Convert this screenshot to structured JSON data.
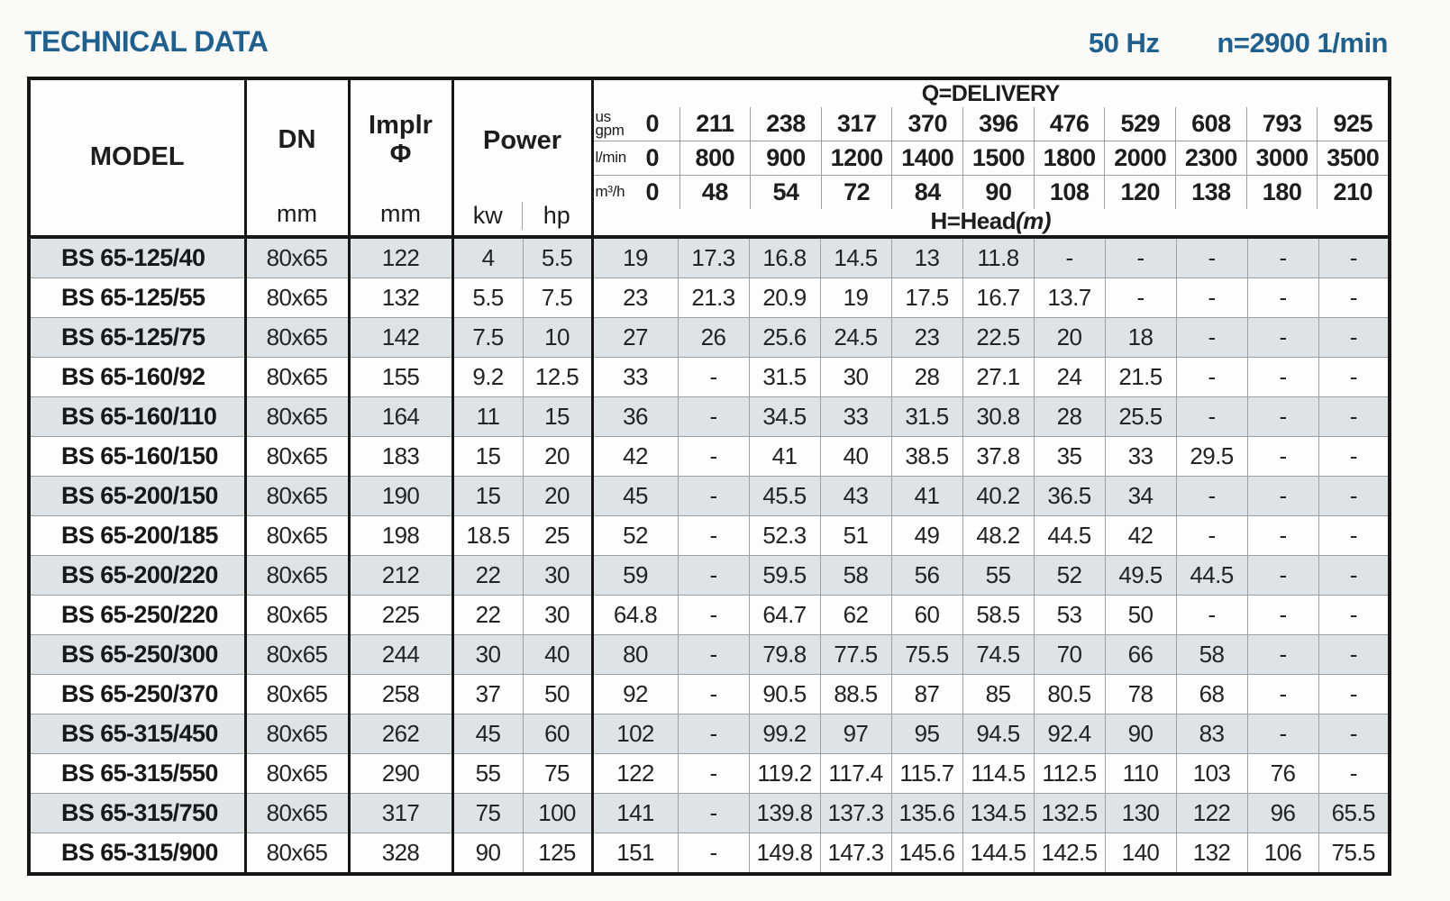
{
  "page": {
    "title": "TECHNICAL DATA",
    "frequency": "50 Hz",
    "speed": "n=2900 1/min"
  },
  "colors": {
    "accent_blue": "#1e608f",
    "row_shade": "#dee3e6",
    "grid_thin": "#9aa0a6",
    "grid_thick": "#161616"
  },
  "table": {
    "headers": {
      "model": "MODEL",
      "dn": "DN",
      "dn_unit": "mm",
      "implr_line1": "Implr",
      "implr_line2": "Φ",
      "implr_unit": "mm",
      "power": "Power",
      "power_kw": "kw",
      "power_hp": "hp",
      "delivery_title": "Q=DELIVERY",
      "head_label": "H=Head",
      "head_unit": "(m)",
      "unit_rows": [
        {
          "unit_lines": [
            "us",
            "gpm"
          ],
          "values": [
            "0",
            "211",
            "238",
            "317",
            "370",
            "396",
            "476",
            "529",
            "608",
            "793",
            "925"
          ]
        },
        {
          "unit_lines": [
            "l/min"
          ],
          "values": [
            "0",
            "800",
            "900",
            "1200",
            "1400",
            "1500",
            "1800",
            "2000",
            "2300",
            "3000",
            "3500"
          ]
        },
        {
          "unit_lines": [
            "m³/h"
          ],
          "values": [
            "0",
            "48",
            "54",
            "72",
            "84",
            "90",
            "108",
            "120",
            "138",
            "180",
            "210"
          ]
        }
      ]
    },
    "rows": [
      {
        "model": "BS 65-125/40",
        "dn": "80x65",
        "implr": "122",
        "kw": "4",
        "hp": "5.5",
        "head": [
          "19",
          "17.3",
          "16.8",
          "14.5",
          "13",
          "11.8",
          "-",
          "-",
          "-",
          "-",
          "-"
        ]
      },
      {
        "model": "BS 65-125/55",
        "dn": "80x65",
        "implr": "132",
        "kw": "5.5",
        "hp": "7.5",
        "head": [
          "23",
          "21.3",
          "20.9",
          "19",
          "17.5",
          "16.7",
          "13.7",
          "-",
          "-",
          "-",
          "-"
        ]
      },
      {
        "model": "BS 65-125/75",
        "dn": "80x65",
        "implr": "142",
        "kw": "7.5",
        "hp": "10",
        "head": [
          "27",
          "26",
          "25.6",
          "24.5",
          "23",
          "22.5",
          "20",
          "18",
          "-",
          "-",
          "-"
        ]
      },
      {
        "model": "BS 65-160/92",
        "dn": "80x65",
        "implr": "155",
        "kw": "9.2",
        "hp": "12.5",
        "head": [
          "33",
          "-",
          "31.5",
          "30",
          "28",
          "27.1",
          "24",
          "21.5",
          "-",
          "-",
          "-"
        ]
      },
      {
        "model": "BS 65-160/110",
        "dn": "80x65",
        "implr": "164",
        "kw": "11",
        "hp": "15",
        "head": [
          "36",
          "-",
          "34.5",
          "33",
          "31.5",
          "30.8",
          "28",
          "25.5",
          "-",
          "-",
          "-"
        ]
      },
      {
        "model": "BS 65-160/150",
        "dn": "80x65",
        "implr": "183",
        "kw": "15",
        "hp": "20",
        "head": [
          "42",
          "-",
          "41",
          "40",
          "38.5",
          "37.8",
          "35",
          "33",
          "29.5",
          "-",
          "-"
        ]
      },
      {
        "model": "BS 65-200/150",
        "dn": "80x65",
        "implr": "190",
        "kw": "15",
        "hp": "20",
        "head": [
          "45",
          "-",
          "45.5",
          "43",
          "41",
          "40.2",
          "36.5",
          "34",
          "-",
          "-",
          "-"
        ]
      },
      {
        "model": "BS 65-200/185",
        "dn": "80x65",
        "implr": "198",
        "kw": "18.5",
        "hp": "25",
        "head": [
          "52",
          "-",
          "52.3",
          "51",
          "49",
          "48.2",
          "44.5",
          "42",
          "-",
          "-",
          "-"
        ]
      },
      {
        "model": "BS 65-200/220",
        "dn": "80x65",
        "implr": "212",
        "kw": "22",
        "hp": "30",
        "head": [
          "59",
          "-",
          "59.5",
          "58",
          "56",
          "55",
          "52",
          "49.5",
          "44.5",
          "-",
          "-"
        ]
      },
      {
        "model": "BS 65-250/220",
        "dn": "80x65",
        "implr": "225",
        "kw": "22",
        "hp": "30",
        "head": [
          "64.8",
          "-",
          "64.7",
          "62",
          "60",
          "58.5",
          "53",
          "50",
          "-",
          "-",
          "-"
        ]
      },
      {
        "model": "BS 65-250/300",
        "dn": "80x65",
        "implr": "244",
        "kw": "30",
        "hp": "40",
        "head": [
          "80",
          "-",
          "79.8",
          "77.5",
          "75.5",
          "74.5",
          "70",
          "66",
          "58",
          "-",
          "-"
        ]
      },
      {
        "model": "BS 65-250/370",
        "dn": "80x65",
        "implr": "258",
        "kw": "37",
        "hp": "50",
        "head": [
          "92",
          "-",
          "90.5",
          "88.5",
          "87",
          "85",
          "80.5",
          "78",
          "68",
          "-",
          "-"
        ]
      },
      {
        "model": "BS 65-315/450",
        "dn": "80x65",
        "implr": "262",
        "kw": "45",
        "hp": "60",
        "head": [
          "102",
          "-",
          "99.2",
          "97",
          "95",
          "94.5",
          "92.4",
          "90",
          "83",
          "-",
          "-"
        ]
      },
      {
        "model": "BS 65-315/550",
        "dn": "80x65",
        "implr": "290",
        "kw": "55",
        "hp": "75",
        "head": [
          "122",
          "-",
          "119.2",
          "117.4",
          "115.7",
          "114.5",
          "112.5",
          "110",
          "103",
          "76",
          "-"
        ]
      },
      {
        "model": "BS 65-315/750",
        "dn": "80x65",
        "implr": "317",
        "kw": "75",
        "hp": "100",
        "head": [
          "141",
          "-",
          "139.8",
          "137.3",
          "135.6",
          "134.5",
          "132.5",
          "130",
          "122",
          "96",
          "65.5"
        ]
      },
      {
        "model": "BS 65-315/900",
        "dn": "80x65",
        "implr": "328",
        "kw": "90",
        "hp": "125",
        "head": [
          "151",
          "-",
          "149.8",
          "147.3",
          "145.6",
          "144.5",
          "142.5",
          "140",
          "132",
          "106",
          "75.5"
        ]
      }
    ]
  }
}
